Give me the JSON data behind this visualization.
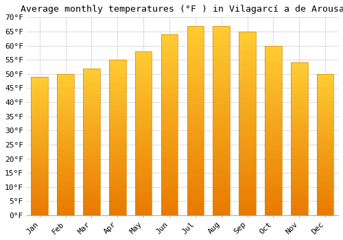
{
  "title": "Average monthly temperatures (°F ) in Vilagarcí a de Arousa",
  "months": [
    "Jan",
    "Feb",
    "Mar",
    "Apr",
    "May",
    "Jun",
    "Jul",
    "Aug",
    "Sep",
    "Oct",
    "Nov",
    "Dec"
  ],
  "values": [
    49,
    50,
    52,
    55,
    58,
    64,
    67,
    67,
    65,
    60,
    54,
    50
  ],
  "bar_color_top": "#FFCC33",
  "bar_color_bottom": "#E87A00",
  "bar_edge_color": "#CC8800",
  "background_color": "#FFFFFF",
  "grid_color": "#DDDDDD",
  "ylim": [
    0,
    70
  ],
  "ytick_step": 5,
  "ylabel_suffix": "°F",
  "title_fontsize": 9.5,
  "tick_fontsize": 8,
  "font_family": "monospace"
}
